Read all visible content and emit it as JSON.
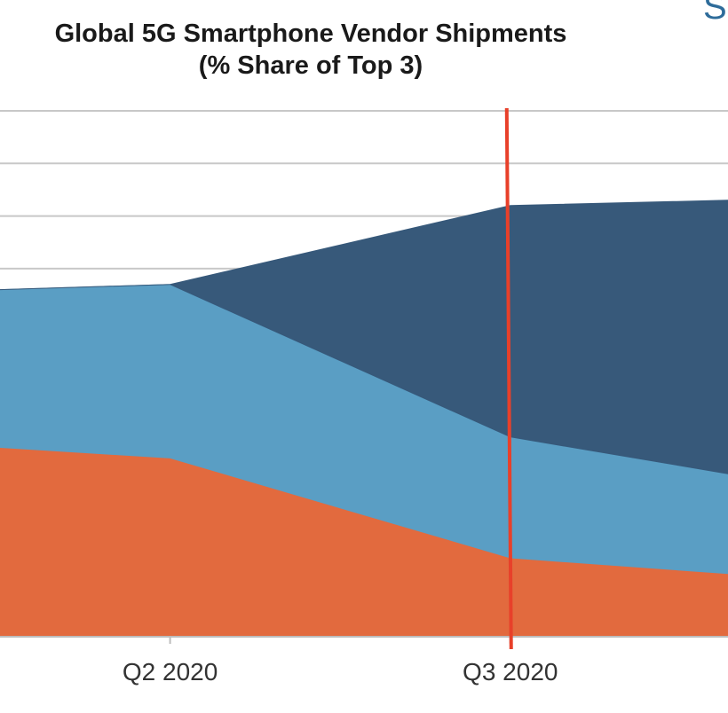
{
  "header": {
    "title": "Global 5G Smartphone Vendor Shipments",
    "subtitle": "(% Share of Top 3)",
    "corner_text": "S"
  },
  "chart_data": {
    "type": "area",
    "stacked": true,
    "title": "Global 5G Smartphone Vendor Shipments",
    "subtitle": "(% Share of Top 3)",
    "categories": [
      "",
      "Q2 2020",
      "Q3 2020",
      ""
    ],
    "x_positions": [
      0.5,
      1,
      2,
      2.64
    ],
    "xlim": [
      0.5,
      2.64
    ],
    "ylim": [
      0,
      1
    ],
    "grid": true,
    "legend": "none",
    "marker": {
      "x": 2,
      "color": "#e8402a"
    },
    "series": [
      {
        "values": [
          0.36,
          0.34,
          0.15,
          0.12
        ],
        "color": "#e26a3e"
      },
      {
        "values": [
          0.3,
          0.33,
          0.23,
          0.19
        ],
        "color": "#5a9ec4"
      },
      {
        "values": [
          0.0,
          0.0,
          0.44,
          0.52
        ],
        "color": "#37597a"
      }
    ]
  }
}
